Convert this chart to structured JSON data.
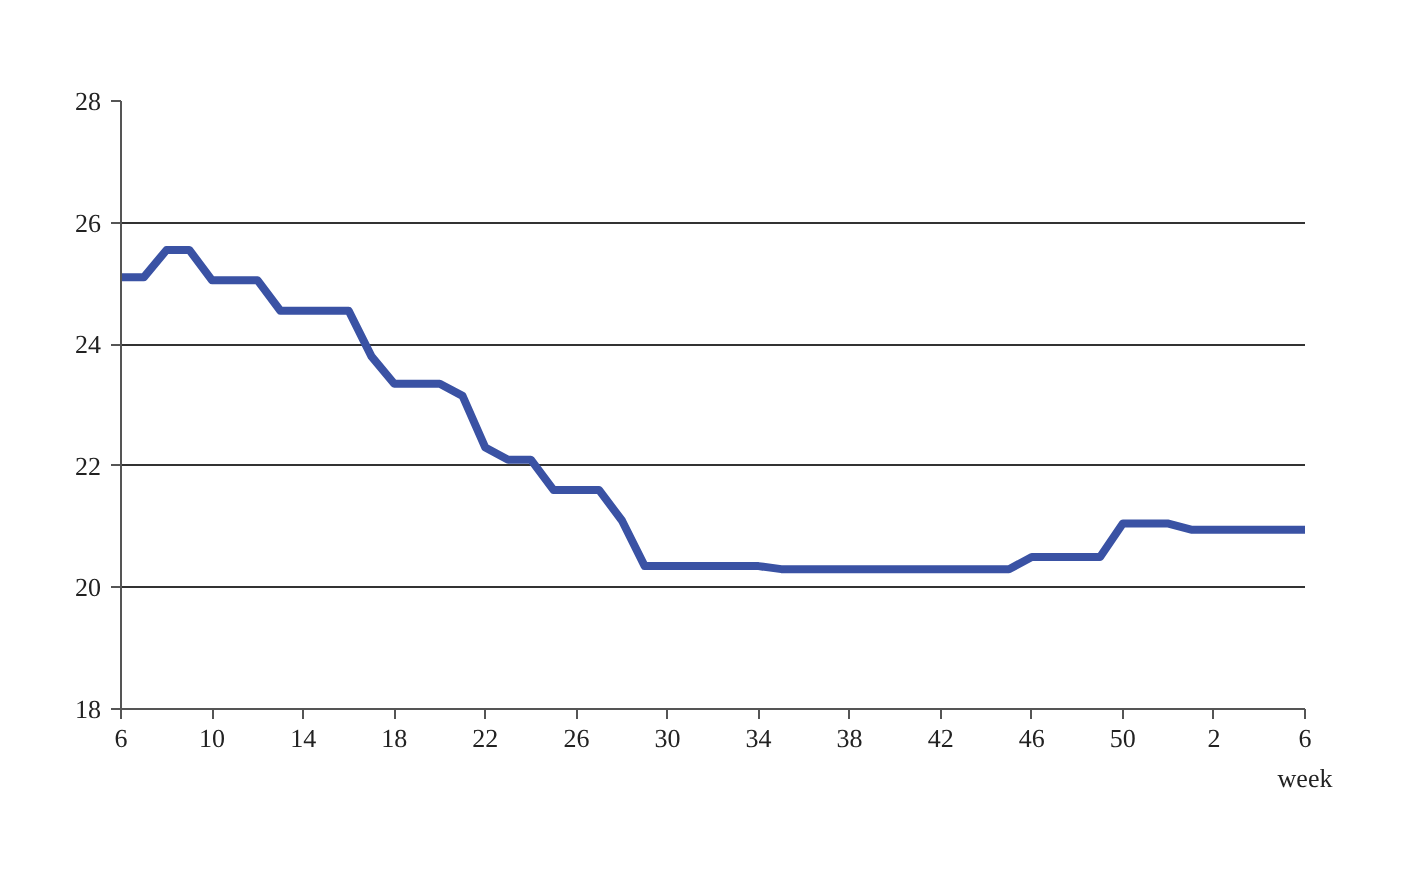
{
  "chart_data": {
    "type": "line",
    "xlabel": "week",
    "categories": [
      "6",
      null,
      null,
      null,
      "10",
      null,
      null,
      null,
      "14",
      null,
      null,
      null,
      "18",
      null,
      null,
      null,
      "22",
      null,
      null,
      null,
      "26",
      null,
      null,
      null,
      "30",
      null,
      null,
      null,
      "34",
      null,
      null,
      null,
      "38",
      null,
      null,
      null,
      "42",
      null,
      null,
      null,
      "46",
      null,
      null,
      null,
      "50",
      null,
      null,
      null,
      "2",
      null,
      null,
      null,
      "6"
    ],
    "series": [
      {
        "color": "#3a52a4",
        "values": [
          25.1,
          25.1,
          25.55,
          25.55,
          25.05,
          25.05,
          25.05,
          24.55,
          24.55,
          24.55,
          24.55,
          23.8,
          23.35,
          23.35,
          23.35,
          23.15,
          22.3,
          22.1,
          22.1,
          21.6,
          21.6,
          21.6,
          21.1,
          20.35,
          20.35,
          20.35,
          20.35,
          20.35,
          20.35,
          20.3,
          20.3,
          20.3,
          20.3,
          20.3,
          20.3,
          20.3,
          20.3,
          20.3,
          20.3,
          20.3,
          20.5,
          20.5,
          20.5,
          20.5,
          21.05,
          21.05,
          21.05,
          20.95,
          20.95,
          20.95,
          20.95,
          20.95,
          20.95
        ]
      }
    ],
    "ylim": [
      18,
      28
    ],
    "yticks": [
      18,
      20,
      22,
      24,
      26,
      28
    ],
    "grid": "y",
    "marker": "none",
    "line_style": "solid"
  }
}
